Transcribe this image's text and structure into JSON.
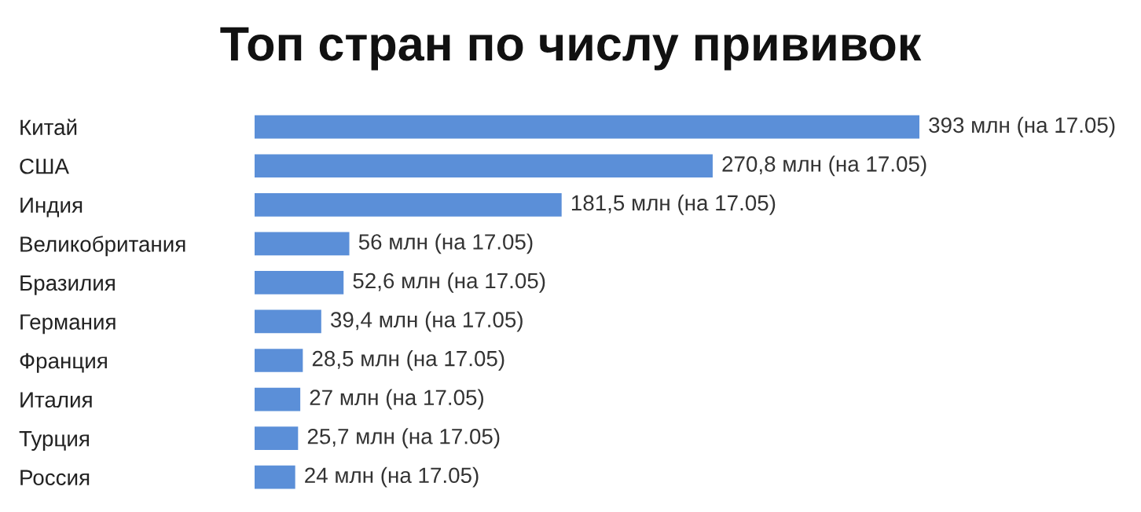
{
  "chart_data": {
    "type": "bar",
    "orientation": "horizontal",
    "title": "Топ стран по числу прививок",
    "categories": [
      "Китай",
      "США",
      "Индия",
      "Великобритания",
      "Бразилия",
      "Германия",
      "Франция",
      "Италия",
      "Турция",
      "Россия"
    ],
    "values": [
      393,
      270.8,
      181.5,
      56,
      52.6,
      39.4,
      28.5,
      27,
      25.7,
      24
    ],
    "color": "#5b8fd8",
    "value_labels": [
      "393 млн (на 17.05)",
      "270,8 млн (на 17.05)",
      "181,5 млн (на 17.05)",
      "56 млн (на 17.05)",
      "52,6 млн (на 17.05)",
      "39,4 млн (на 17.05)",
      "28,5 млн (на 17.05)",
      "27 млн (на 17.05)",
      "25,7 млн (на 17.05)",
      "24 млн (на 17.05)"
    ],
    "grid": false,
    "legend": false
  }
}
